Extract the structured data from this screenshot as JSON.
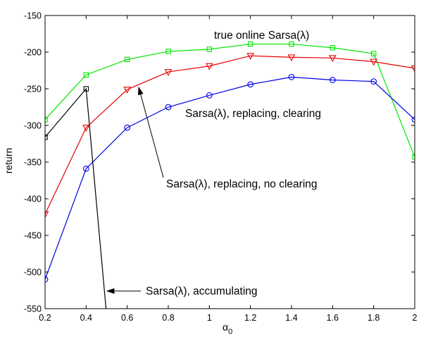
{
  "chart_data": {
    "type": "line",
    "xlabel_main": "α",
    "xlabel_sub": "0",
    "ylabel": "return",
    "xlim": [
      0.2,
      2
    ],
    "ylim": [
      -550,
      -150
    ],
    "xticks": [
      "0.2",
      "0.4",
      "0.6",
      "0.8",
      "1",
      "1.2",
      "1.4",
      "1.6",
      "1.8",
      "2"
    ],
    "yticks": [
      "-550",
      "-500",
      "-450",
      "-400",
      "-350",
      "-300",
      "-250",
      "-200",
      "-150"
    ],
    "x": [
      0.2,
      0.4,
      0.6,
      0.8,
      1.0,
      1.2,
      1.4,
      1.6,
      1.8,
      2.0
    ],
    "series": [
      {
        "name": "true online Sarsa(λ)",
        "color": "#00e600",
        "marker": "square",
        "x": [
          0.2,
          0.4,
          0.6,
          0.8,
          1.0,
          1.2,
          1.4,
          1.6,
          1.8,
          2.0
        ],
        "values": [
          -292,
          -231,
          -210,
          -199,
          -196,
          -189,
          -189,
          -194,
          -202,
          -343
        ]
      },
      {
        "name": "Sarsa(λ), replacing, no clearing",
        "color": "#e60000",
        "marker": "triangle-down",
        "x": [
          0.2,
          0.4,
          0.6,
          0.8,
          1.0,
          1.2,
          1.4,
          1.6,
          1.8,
          2.0
        ],
        "values": [
          -421,
          -303,
          -251,
          -227,
          -219,
          -205,
          -207,
          -208,
          -213,
          -222
        ]
      },
      {
        "name": "Sarsa(λ), replacing, clearing",
        "color": "#0000e6",
        "marker": "circle",
        "x": [
          0.2,
          0.4,
          0.6,
          0.8,
          1.0,
          1.2,
          1.4,
          1.6,
          1.8,
          2.0
        ],
        "values": [
          -510,
          -359,
          -303,
          -275,
          -259,
          -244,
          -234,
          -238,
          -240,
          -292
        ]
      },
      {
        "name": "Sarsa(λ), accumulating",
        "color": "#000000",
        "marker": "square",
        "x": [
          0.2,
          0.4,
          0.5
        ],
        "values": [
          -316,
          -250,
          -560
        ]
      }
    ],
    "annotations": [
      "true online Sarsa(λ)",
      "Sarsa(λ), replacing, clearing",
      "Sarsa(λ), replacing, no clearing",
      "Sarsa(λ), accumulating"
    ],
    "grid": false,
    "legend": "none (inline annotations)"
  }
}
